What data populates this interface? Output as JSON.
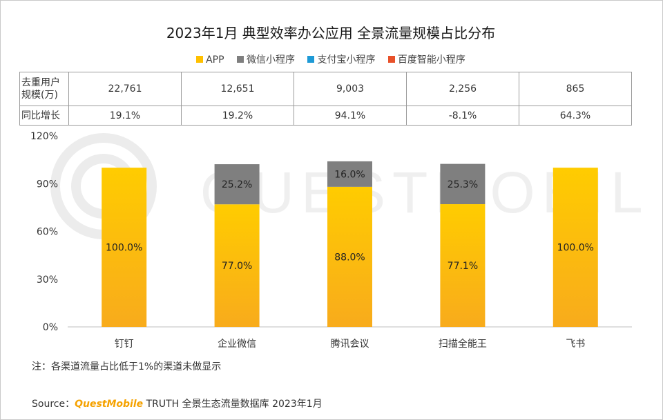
{
  "title": "2023年1月 典型效率办公应用 全景流量规模占比分布",
  "legend": [
    {
      "label": "APP",
      "color": "#ffc000"
    },
    {
      "label": "微信小程序",
      "color": "#7f7f7f"
    },
    {
      "label": "支付宝小程序",
      "color": "#1e9ad6"
    },
    {
      "label": "百度智能小程序",
      "color": "#e8512a"
    }
  ],
  "table": {
    "row1_label": "去重用户规模(万)",
    "row1_values": [
      "22,761",
      "12,651",
      "9,003",
      "2,256",
      "865"
    ],
    "row2_label": "同比增长",
    "row2_values": [
      "19.1%",
      "19.2%",
      "94.1%",
      "-8.1%",
      "64.3%"
    ]
  },
  "chart_data": {
    "type": "bar",
    "stacked": true,
    "categories": [
      "钉钉",
      "企业微信",
      "腾讯会议",
      "扫描全能王",
      "飞书"
    ],
    "series": [
      {
        "name": "APP",
        "color": "#ffc000",
        "values": [
          100.0,
          77.0,
          88.0,
          77.1,
          100.0
        ],
        "labels": [
          "100.0%",
          "77.0%",
          "88.0%",
          "77.1%",
          "100.0%"
        ]
      },
      {
        "name": "微信小程序",
        "color": "#7f7f7f",
        "values": [
          0,
          25.2,
          16.0,
          25.3,
          0
        ],
        "labels": [
          "",
          "25.2%",
          "16.0%",
          "25.3%",
          ""
        ]
      }
    ],
    "yticks": [
      "0%",
      "30%",
      "60%",
      "90%",
      "120%"
    ],
    "ylim": [
      0,
      120
    ]
  },
  "watermark": "QUESTMOBILE",
  "footnote": "注：各渠道流量占比低于1%的渠道未做显示",
  "source": {
    "prefix": "Source：",
    "brand": "QuestMobile",
    "rest": " TRUTH 全景生态流量数据库 2023年1月"
  }
}
